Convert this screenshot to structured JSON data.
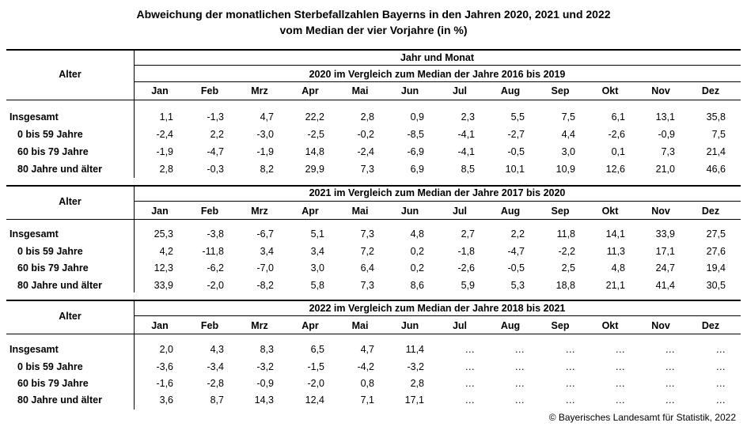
{
  "title_line1": "Abweichung der monatlichen Sterbefallzahlen Bayerns in den Jahren 2020, 2021 und 2022",
  "title_line2": "vom Median der vier Vorjahre (in %)",
  "jahr_und_monat": "Jahr und Monat",
  "alter_label": "Alter",
  "months": [
    "Jan",
    "Feb",
    "Mrz",
    "Apr",
    "Mai",
    "Jun",
    "Jul",
    "Aug",
    "Sep",
    "Okt",
    "Nov",
    "Dez"
  ],
  "row_labels": [
    "Insgesamt",
    "0 bis 59 Jahre",
    "60 bis 79 Jahre",
    "80 Jahre und älter"
  ],
  "sections": [
    {
      "heading": "2020 im Vergleich zum Median der Jahre 2016 bis 2019",
      "rows": [
        [
          "1,1",
          "-1,3",
          "4,7",
          "22,2",
          "2,8",
          "0,9",
          "2,3",
          "5,5",
          "7,5",
          "6,1",
          "13,1",
          "35,8"
        ],
        [
          "-2,4",
          "2,2",
          "-3,0",
          "-2,5",
          "-0,2",
          "-8,5",
          "-4,1",
          "-2,7",
          "4,4",
          "-2,6",
          "-0,9",
          "7,5"
        ],
        [
          "-1,9",
          "-4,7",
          "-1,9",
          "14,8",
          "-2,4",
          "-6,9",
          "-4,1",
          "-0,5",
          "3,0",
          "0,1",
          "7,3",
          "21,4"
        ],
        [
          "2,8",
          "-0,3",
          "8,2",
          "29,9",
          "7,3",
          "6,9",
          "8,5",
          "10,1",
          "10,9",
          "12,6",
          "21,0",
          "46,6"
        ]
      ]
    },
    {
      "heading": "2021 im Vergleich zum Median der Jahre 2017 bis 2020",
      "rows": [
        [
          "25,3",
          "-3,8",
          "-6,7",
          "5,1",
          "7,3",
          "4,8",
          "2,7",
          "2,2",
          "11,8",
          "14,1",
          "33,9",
          "27,5"
        ],
        [
          "4,2",
          "-11,8",
          "3,4",
          "3,4",
          "7,2",
          "0,2",
          "-1,8",
          "-4,7",
          "-2,2",
          "11,3",
          "17,1",
          "27,6"
        ],
        [
          "12,3",
          "-6,2",
          "-7,0",
          "3,0",
          "6,4",
          "0,2",
          "-2,6",
          "-0,5",
          "2,5",
          "4,8",
          "24,7",
          "19,4"
        ],
        [
          "33,9",
          "-2,0",
          "-8,2",
          "5,8",
          "7,3",
          "8,6",
          "5,9",
          "5,3",
          "18,8",
          "21,1",
          "41,4",
          "30,5"
        ]
      ]
    },
    {
      "heading": "2022 im Vergleich zum Median der Jahre 2018 bis 2021",
      "rows": [
        [
          "2,0",
          "4,3",
          "8,3",
          "6,5",
          "4,7",
          "11,4",
          "…",
          "…",
          "…",
          "…",
          "…",
          "…"
        ],
        [
          "-3,6",
          "-3,4",
          "-3,2",
          "-1,5",
          "-4,2",
          "-3,2",
          "…",
          "…",
          "…",
          "…",
          "…",
          "…"
        ],
        [
          "-1,6",
          "-2,8",
          "-0,9",
          "-2,0",
          "0,8",
          "2,8",
          "…",
          "…",
          "…",
          "…",
          "…",
          "…"
        ],
        [
          "3,6",
          "8,7",
          "14,3",
          "12,4",
          "7,1",
          "17,1",
          "…",
          "…",
          "…",
          "…",
          "…",
          "…"
        ]
      ]
    }
  ],
  "footer": "© Bayerisches Landesamt für Statistik, 2022"
}
